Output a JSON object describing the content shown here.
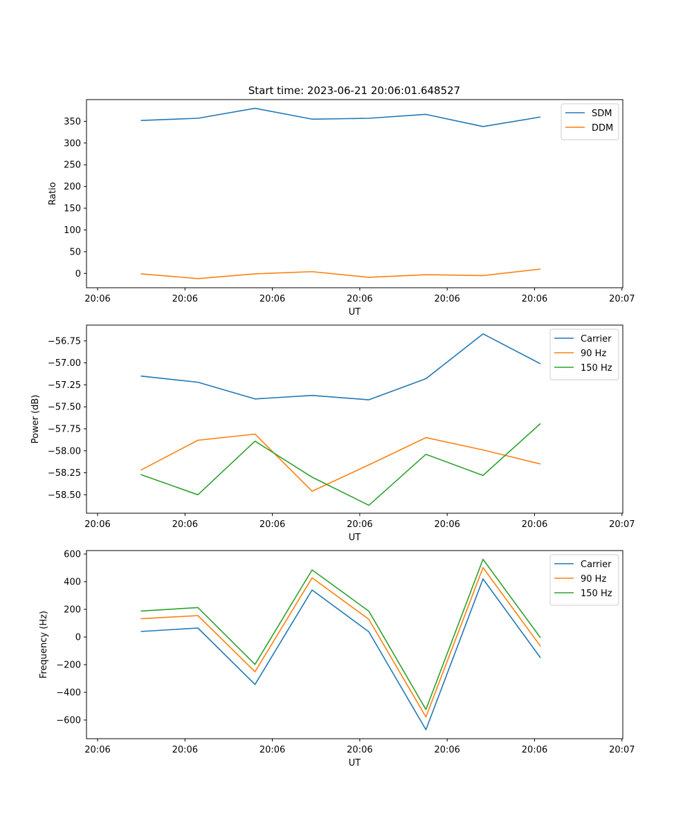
{
  "figure": {
    "title": "Start time: 2023-06-21 20:06:01.648527"
  },
  "chart_data": [
    {
      "type": "line",
      "xlabel": "UT",
      "ylabel": "Ratio",
      "x_tick_labels": [
        "20:06",
        "20:06",
        "20:06",
        "20:06",
        "20:06",
        "20:06",
        "20:07"
      ],
      "yticks": [
        0,
        50,
        100,
        150,
        200,
        250,
        300,
        350
      ],
      "ylim": [
        -33,
        400
      ],
      "grid": false,
      "legend_position": "top-right",
      "series": [
        {
          "name": "SDM",
          "color": "#1f77b4",
          "values": [
            352,
            357,
            380,
            355,
            357,
            366,
            338,
            360
          ]
        },
        {
          "name": "DDM",
          "color": "#ff7f0e",
          "values": [
            -1,
            -12,
            -1,
            4,
            -9,
            -3,
            -5,
            10
          ]
        }
      ]
    },
    {
      "type": "line",
      "xlabel": "UT",
      "ylabel": "Power (dB)",
      "x_tick_labels": [
        "20:06",
        "20:06",
        "20:06",
        "20:06",
        "20:06",
        "20:06",
        "20:07"
      ],
      "yticks": [
        -58.5,
        -58.25,
        -58.0,
        -57.75,
        -57.5,
        -57.25,
        -57.0,
        -56.75
      ],
      "ytick_labels": [
        "−58.50",
        "−58.25",
        "−58.00",
        "−57.75",
        "−57.50",
        "−57.25",
        "−57.00",
        "−56.75"
      ],
      "ylim": [
        -58.71,
        -56.57
      ],
      "grid": false,
      "legend_position": "top-right",
      "series": [
        {
          "name": "Carrier",
          "color": "#1f77b4",
          "values": [
            -57.15,
            -57.22,
            -57.41,
            -57.37,
            -57.42,
            -57.18,
            -56.67,
            -57.01
          ]
        },
        {
          "name": "90 Hz",
          "color": "#ff7f0e",
          "values": [
            -58.22,
            -57.88,
            -57.81,
            -58.46,
            -58.16,
            -57.85,
            -57.99,
            -58.15
          ]
        },
        {
          "name": "150 Hz",
          "color": "#2ca02c",
          "values": [
            -58.27,
            -58.5,
            -57.89,
            -58.3,
            -58.62,
            -58.04,
            -58.28,
            -57.69
          ]
        }
      ]
    },
    {
      "type": "line",
      "xlabel": "UT",
      "ylabel": "Frequency (Hz)",
      "x_tick_labels": [
        "20:06",
        "20:06",
        "20:06",
        "20:06",
        "20:06",
        "20:06",
        "20:07"
      ],
      "yticks": [
        -600,
        -400,
        -200,
        0,
        200,
        400,
        600
      ],
      "ytick_labels": [
        "−600",
        "−400",
        "−200",
        "0",
        "200",
        "400",
        "600"
      ],
      "ylim": [
        -735,
        625
      ],
      "grid": false,
      "legend_position": "top-right",
      "series": [
        {
          "name": "Carrier",
          "color": "#1f77b4",
          "values": [
            40,
            65,
            -343,
            340,
            38,
            -670,
            420,
            -150
          ]
        },
        {
          "name": "90 Hz",
          "color": "#ff7f0e",
          "values": [
            132,
            155,
            -251,
            428,
            128,
            -578,
            502,
            -66
          ]
        },
        {
          "name": "150 Hz",
          "color": "#2ca02c",
          "values": [
            188,
            213,
            -198,
            485,
            187,
            -524,
            562,
            -5
          ]
        }
      ]
    }
  ]
}
